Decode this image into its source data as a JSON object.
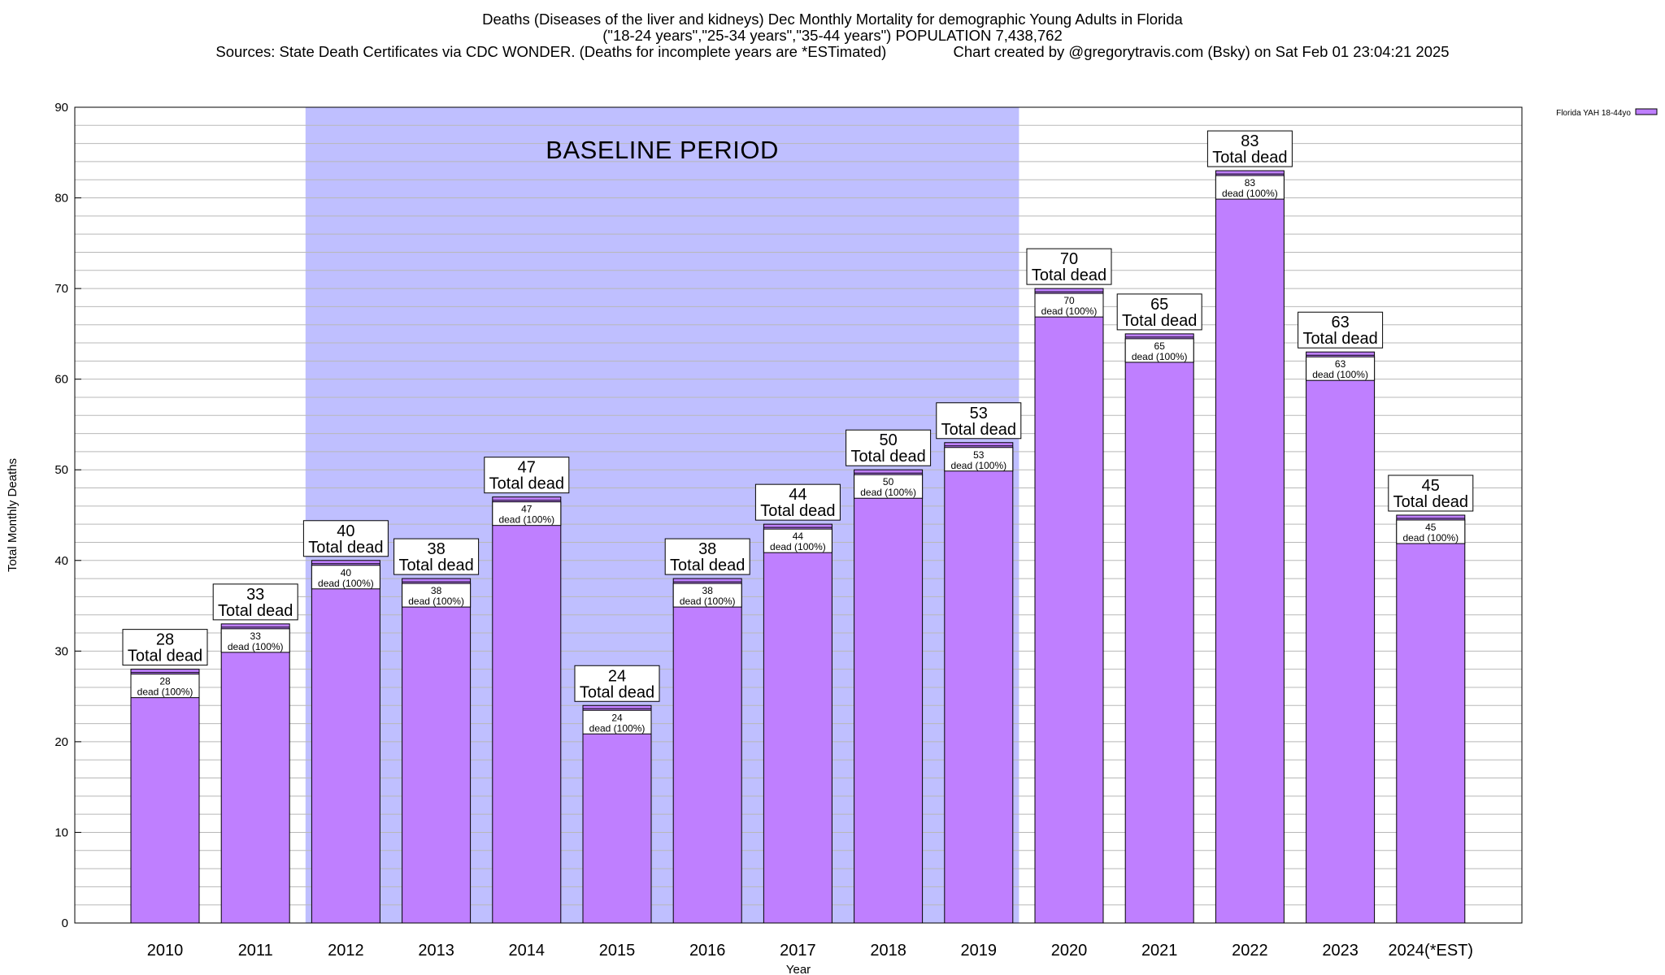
{
  "chart_data": {
    "type": "bar",
    "title_lines": [
      "Deaths (Diseases of the liver and kidneys) Dec Monthly Mortality for demographic Young Adults in Florida",
      "(\"18-24 years\",\"25-34 years\",\"35-44 years\") POPULATION 7,438,762",
      "Sources: State Death Certificates via CDC WONDER. (Deaths for incomplete years are *ESTimated)                Chart created by @gregorytravis.com (Bsky) on Sat Feb 01 23:04:21 2025"
    ],
    "xlabel": "Year",
    "ylabel": "Total Monthly Deaths",
    "ylim": [
      0,
      90
    ],
    "y_ticks": [
      0,
      10,
      20,
      30,
      40,
      50,
      60,
      70,
      80,
      90
    ],
    "categories": [
      "2010",
      "2011",
      "2012",
      "2013",
      "2014",
      "2015",
      "2016",
      "2017",
      "2018",
      "2019",
      "2020",
      "2021",
      "2022",
      "2023",
      "2024(*EST)"
    ],
    "series": [
      {
        "name": "Florida YAH 18-44yo",
        "color": "#bf7fff",
        "values": [
          28,
          33,
          40,
          38,
          47,
          24,
          38,
          44,
          50,
          53,
          70,
          65,
          83,
          63,
          45
        ]
      }
    ],
    "total_label_suffix": "Total dead",
    "bar_label_suffix": "dead (100%)",
    "baseline_period": {
      "label": "BASELINE PERIOD",
      "from": "2012",
      "to": "2019",
      "color": "#bfbfff"
    },
    "grid": true,
    "legend_position": "top-right"
  }
}
